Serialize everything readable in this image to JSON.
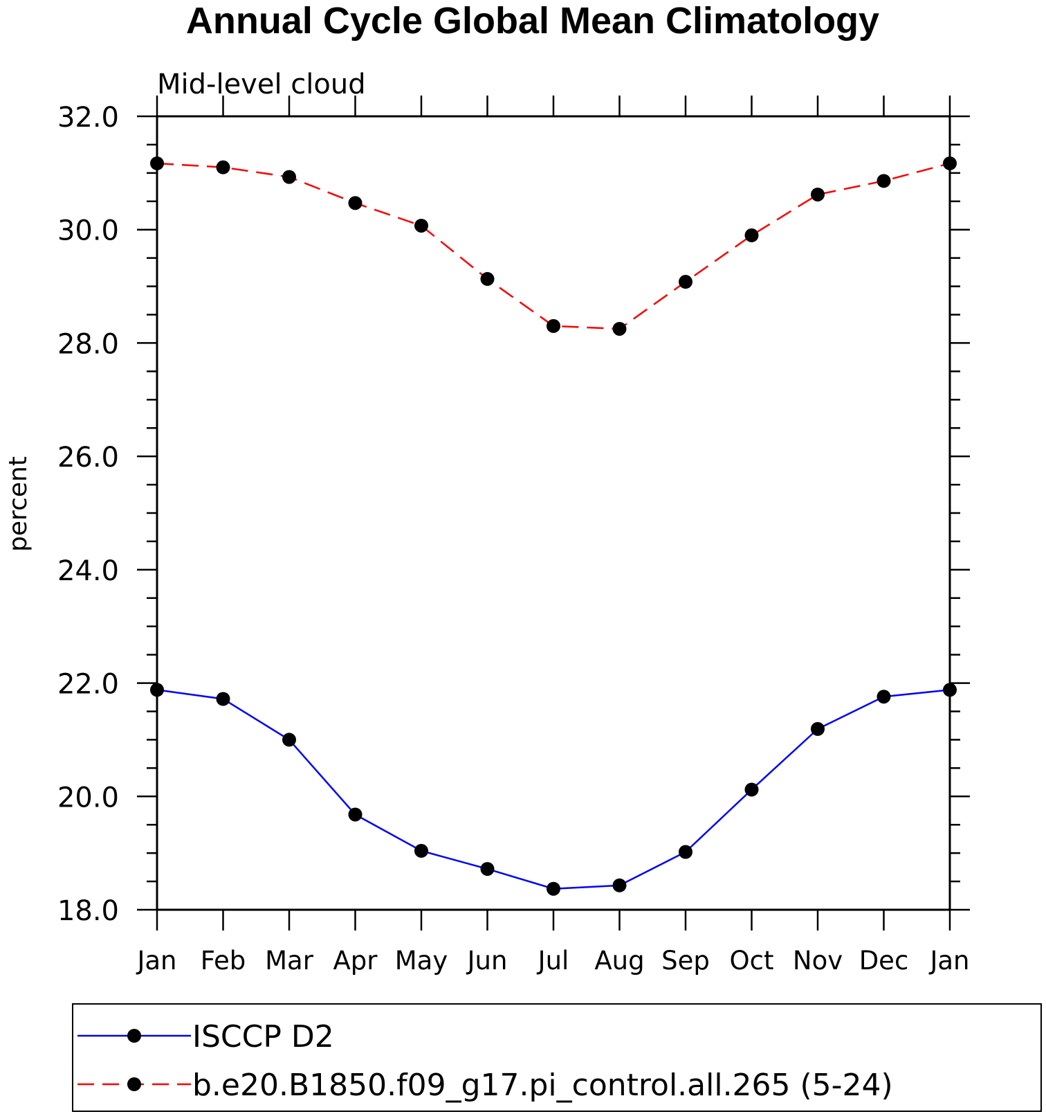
{
  "chart_data": {
    "type": "line",
    "title": "Annual Cycle Global Mean Climatology",
    "subtitle": "Mid-level cloud",
    "ylabel": "percent",
    "xlabel": "",
    "categories": [
      "Jan",
      "Feb",
      "Mar",
      "Apr",
      "May",
      "Jun",
      "Jul",
      "Aug",
      "Sep",
      "Oct",
      "Nov",
      "Dec",
      "Jan"
    ],
    "ylim": [
      18.0,
      32.0
    ],
    "yticks": [
      "18.0",
      "20.0",
      "22.0",
      "24.0",
      "26.0",
      "28.0",
      "30.0",
      "32.0"
    ],
    "grid": false,
    "legend_position": "bottom",
    "series": [
      {
        "name": "ISCCP D2",
        "color": "#0000ff",
        "dash": "solid",
        "marker": "filled-circle",
        "values": [
          21.88,
          21.72,
          21.0,
          19.68,
          19.04,
          18.72,
          18.37,
          18.43,
          19.02,
          20.12,
          21.19,
          21.76,
          21.88
        ]
      },
      {
        "name": "b.e20.B1850.f09_g17.pi_control.all.265 (5-24)",
        "color": "#ff0000",
        "dash": "dashed",
        "marker": "filled-circle",
        "values": [
          31.17,
          31.1,
          30.93,
          30.47,
          30.07,
          29.13,
          28.3,
          28.25,
          29.08,
          29.9,
          30.62,
          30.86,
          31.17
        ]
      }
    ]
  }
}
